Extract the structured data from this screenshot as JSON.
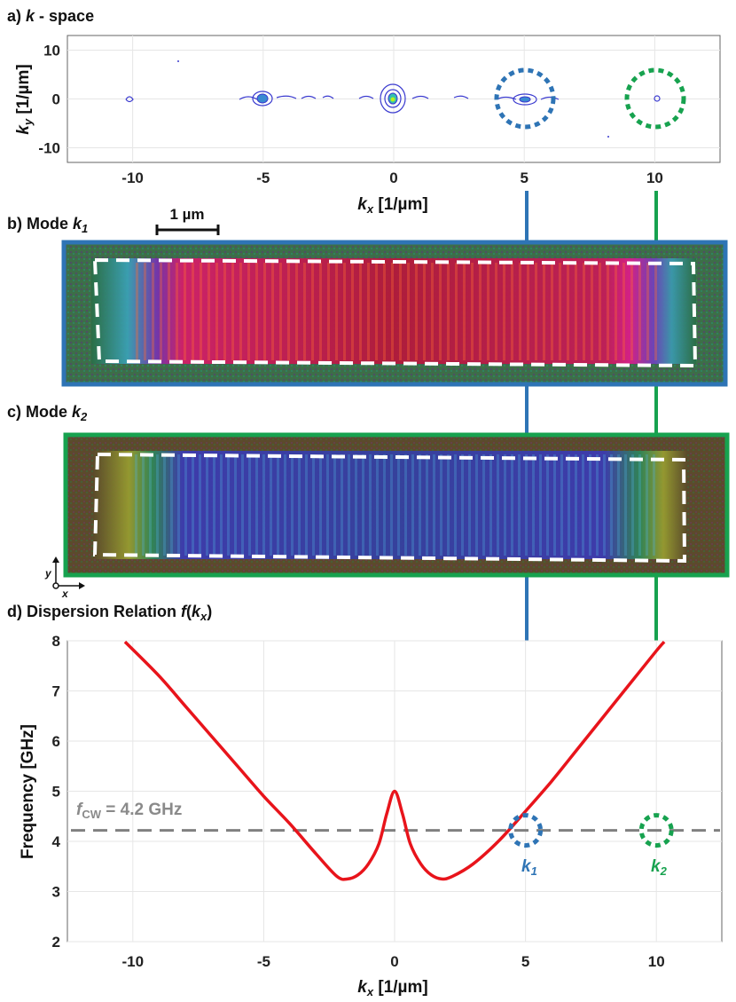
{
  "panels": {
    "a": {
      "label_prefix": "a)",
      "label_var": "k",
      "label_suffix": " - space",
      "ylabel_var": "k",
      "ylabel_sub": "y",
      "ylabel_unit": " [1/µm]",
      "xlabel_var": "k",
      "xlabel_sub": "x",
      "xlabel_unit": " [1/µm]",
      "xticks": [
        "-10",
        "-5",
        "0",
        "5",
        "10"
      ],
      "yticks": [
        "10",
        "0",
        "-10"
      ]
    },
    "b": {
      "label_prefix": "b) Mode ",
      "label_var": "k",
      "label_sub": "1",
      "scalebar": "1 µm"
    },
    "c": {
      "label_prefix": "c) Mode ",
      "label_var": "k",
      "label_sub": "2",
      "axis_y": "y",
      "axis_x": "x"
    },
    "d": {
      "label_prefix": "d) Dispersion Relation ",
      "label_func": "f",
      "label_open": "(",
      "label_var": "k",
      "label_sub": "x",
      "label_close": ")",
      "ylabel": "Frequency [GHz]",
      "xlabel_var": "k",
      "xlabel_sub": "x",
      "xlabel_unit": " [1/µm]",
      "xticks": [
        "-10",
        "-5",
        "0",
        "5",
        "10"
      ],
      "yticks": [
        "8",
        "7",
        "6",
        "5",
        "4",
        "3",
        "2"
      ],
      "fcw_var": "f",
      "fcw_sub": "CW",
      "fcw_value": " = 4.2 GHz",
      "k1_var": "k",
      "k1_sub": "1",
      "k2_var": "k",
      "k2_sub": "2"
    }
  },
  "colors": {
    "blue": "#2e74b5",
    "green": "#17a24f",
    "curve": "#e8141b",
    "dashed": "#808080"
  },
  "chart_data": [
    {
      "type": "contour",
      "xlim": [
        -12.5,
        12.5
      ],
      "ylim": [
        -13,
        13
      ],
      "markers": [
        {
          "label": "k1",
          "kx": 5,
          "ky": 0,
          "color": "#2e74b5"
        },
        {
          "label": "k2",
          "kx": 10,
          "ky": 0,
          "color": "#17a24f"
        }
      ]
    },
    {
      "type": "line",
      "xlim": [
        -12.5,
        12.5
      ],
      "ylim": [
        2,
        8
      ],
      "series": [
        {
          "x": [
            -10.3,
            -9,
            -8,
            -7,
            -6,
            -5,
            -4,
            -3,
            -2.2,
            -1.8,
            -1.4,
            -1.0,
            -0.6,
            -0.3,
            0,
            0.3,
            0.6,
            1.0,
            1.4,
            1.8,
            2.2,
            3,
            4,
            5,
            6,
            7,
            8,
            9,
            10,
            10.3
          ],
          "y": [
            7.98,
            7.3,
            6.7,
            6.1,
            5.5,
            4.9,
            4.35,
            3.75,
            3.3,
            3.25,
            3.33,
            3.55,
            3.95,
            4.55,
            5.0,
            4.55,
            3.95,
            3.55,
            3.33,
            3.25,
            3.3,
            3.55,
            4.02,
            4.6,
            5.2,
            5.85,
            6.5,
            7.15,
            7.8,
            7.98
          ]
        }
      ],
      "hline": 4.22,
      "points": [
        {
          "label": "k1",
          "kx": 5,
          "f": 4.22
        },
        {
          "label": "k2",
          "kx": 10,
          "f": 4.22
        }
      ]
    }
  ]
}
